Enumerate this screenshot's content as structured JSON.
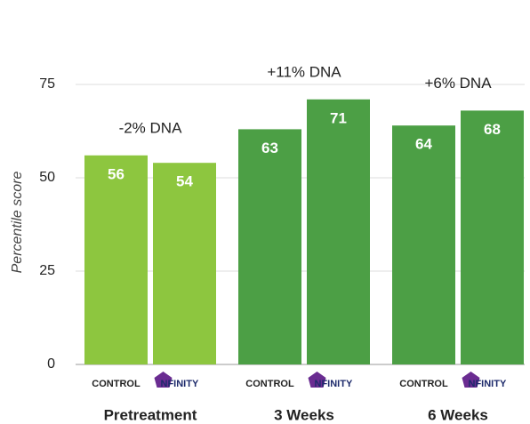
{
  "chart_data": {
    "type": "bar",
    "ylabel": "Percentile score",
    "ylim": [
      0,
      85
    ],
    "yticks": [
      0,
      25,
      50,
      75
    ],
    "grid": true,
    "groups": [
      {
        "name": "Pretreatment",
        "labels": [
          "CONTROL",
          "NFINITY"
        ],
        "values": [
          56,
          54
        ],
        "color": "#8dc63f",
        "annotation": "-2% DNA"
      },
      {
        "name": "3 Weeks",
        "labels": [
          "CONTROL",
          "NFINITY"
        ],
        "values": [
          63,
          71
        ],
        "color": "#4c9f45",
        "annotation": "+11% DNA"
      },
      {
        "name": "6 Weeks",
        "labels": [
          "CONTROL",
          "NFINITY"
        ],
        "values": [
          64,
          68
        ],
        "color": "#4c9f45",
        "annotation": "+6% DNA"
      }
    ]
  }
}
